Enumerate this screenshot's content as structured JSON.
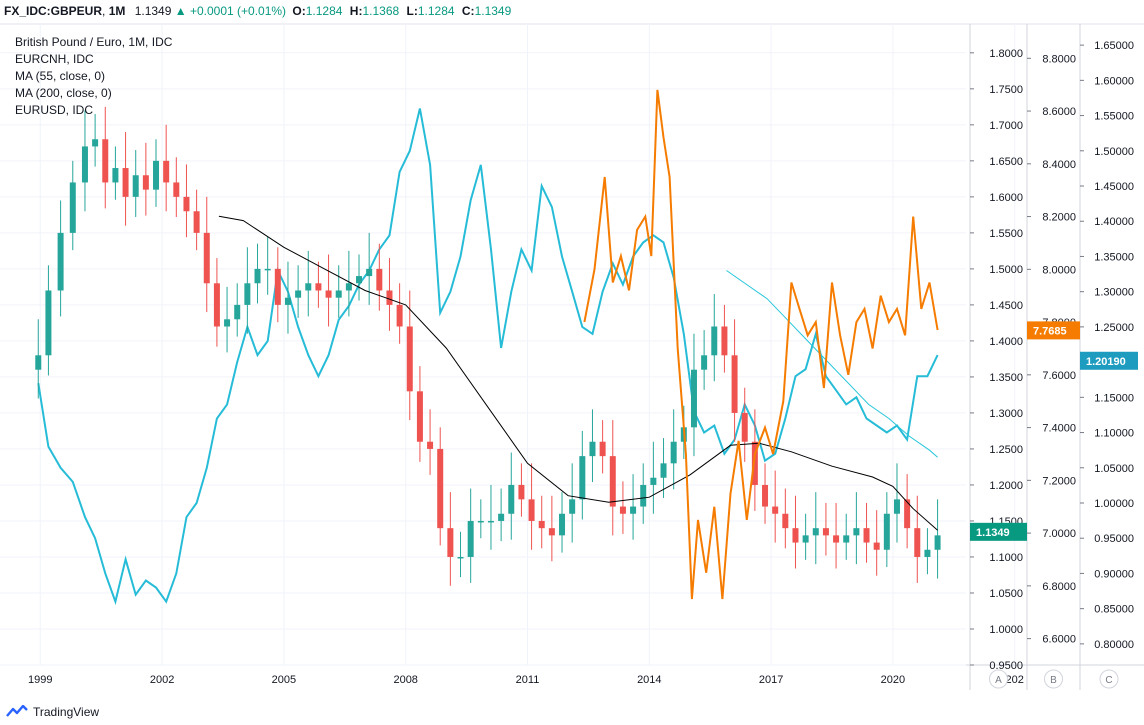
{
  "header": {
    "symbol": "FX_IDC:GBPEUR",
    "interval": "1M",
    "price": "1.1349",
    "change_icon": "triangle-up-icon",
    "change": "+0.0001 (+0.01%)",
    "open_label": "O:",
    "open": "1.1284",
    "high_label": "H:",
    "high": "1.1368",
    "low_label": "L:",
    "low": "1.1284",
    "close_label": "C:",
    "close": "1.1349"
  },
  "legend": [
    "British Pound / Euro, 1M, IDC",
    "EURCNH, IDC",
    "MA (55, close, 0)",
    "MA (200, close, 0)",
    "EURUSD, IDC"
  ],
  "colors": {
    "up": "#26a69a",
    "down": "#ef5350",
    "eurcnh": "#f57c00",
    "eurusd": "#26bcd7",
    "ma55": "#26c6da",
    "ma200": "#000000",
    "last_gbpeur": "#089981",
    "last_eurcnh": "#f57c00",
    "last_eurusd": "#1e9cc0"
  },
  "axis_buttons": [
    "A",
    "B",
    "C"
  ],
  "footer": {
    "brand": "TradingView",
    "logo_icon": "tradingview-logo-icon"
  },
  "chart_data": {
    "type": "line",
    "title": "British Pound / Euro, 1M, IDC",
    "x_ticks": [
      "1999",
      "2002",
      "2005",
      "2008",
      "2011",
      "2014",
      "2017",
      "2020",
      "202"
    ],
    "xlim": [
      1998.5,
      2021.8
    ],
    "axes": {
      "A": {
        "ylim": [
          0.95,
          1.84
        ],
        "ticks": [
          "1.8000",
          "1.7500",
          "1.7000",
          "1.6500",
          "1.6000",
          "1.5500",
          "1.5000",
          "1.4500",
          "1.4000",
          "1.3500",
          "1.3000",
          "1.2500",
          "1.2000",
          "1.1500",
          "1.1000",
          "1.0500",
          "1.0000",
          "0.9500"
        ],
        "last_label": "1.1349",
        "last_value": 1.1349
      },
      "B": {
        "ylim": [
          6.5,
          8.93
        ],
        "ticks": [
          "8.8000",
          "8.6000",
          "8.4000",
          "8.2000",
          "8.0000",
          "7.8000",
          "7.6000",
          "7.4000",
          "7.2000",
          "7.0000",
          "6.8000",
          "6.6000"
        ],
        "last_label": "7.7685",
        "last_value": 7.7685
      },
      "C": {
        "ylim": [
          0.77,
          1.68
        ],
        "ticks": [
          "1.65000",
          "1.60000",
          "1.55000",
          "1.50000",
          "1.45000",
          "1.40000",
          "1.35000",
          "1.30000",
          "1.25000",
          "1.20000",
          "1.15000",
          "1.10000",
          "1.05000",
          "1.00000",
          "0.95000",
          "0.90000",
          "0.85000",
          "0.80000"
        ],
        "last_label": "1.20190",
        "last_value": 1.2019
      }
    },
    "series": [
      {
        "name": "British Pound / Euro, 1M, IDC",
        "type": "candlestick",
        "axis": "A",
        "x": [
          1998.95,
          1999.2,
          1999.5,
          1999.8,
          2000.1,
          2000.35,
          2000.6,
          2000.85,
          2001.1,
          2001.35,
          2001.6,
          2001.85,
          2002.1,
          2002.35,
          2002.6,
          2002.85,
          2003.1,
          2003.35,
          2003.6,
          2003.85,
          2004.1,
          2004.35,
          2004.6,
          2004.85,
          2005.1,
          2005.35,
          2005.6,
          2005.85,
          2006.1,
          2006.35,
          2006.6,
          2006.85,
          2007.1,
          2007.35,
          2007.6,
          2007.85,
          2008.1,
          2008.35,
          2008.6,
          2008.85,
          2009.1,
          2009.35,
          2009.6,
          2009.85,
          2010.1,
          2010.35,
          2010.6,
          2010.85,
          2011.1,
          2011.35,
          2011.6,
          2011.85,
          2012.1,
          2012.35,
          2012.6,
          2012.85,
          2013.1,
          2013.35,
          2013.6,
          2013.85,
          2014.1,
          2014.35,
          2014.6,
          2014.85,
          2015.1,
          2015.35,
          2015.6,
          2015.85,
          2016.1,
          2016.35,
          2016.6,
          2016.85,
          2017.1,
          2017.35,
          2017.6,
          2017.85,
          2018.1,
          2018.35,
          2018.6,
          2018.85,
          2019.1,
          2019.35,
          2019.6,
          2019.85,
          2020.1,
          2020.35,
          2020.6,
          2020.85,
          2021.1
        ],
        "close": [
          1.38,
          1.47,
          1.55,
          1.62,
          1.67,
          1.68,
          1.62,
          1.64,
          1.6,
          1.63,
          1.61,
          1.65,
          1.62,
          1.6,
          1.58,
          1.55,
          1.48,
          1.42,
          1.43,
          1.45,
          1.48,
          1.5,
          1.5,
          1.45,
          1.46,
          1.47,
          1.48,
          1.47,
          1.46,
          1.47,
          1.48,
          1.49,
          1.5,
          1.47,
          1.45,
          1.42,
          1.33,
          1.26,
          1.25,
          1.14,
          1.1,
          1.1,
          1.15,
          1.15,
          1.15,
          1.16,
          1.2,
          1.18,
          1.15,
          1.14,
          1.13,
          1.16,
          1.18,
          1.24,
          1.26,
          1.24,
          1.17,
          1.16,
          1.17,
          1.2,
          1.21,
          1.23,
          1.26,
          1.28,
          1.36,
          1.38,
          1.42,
          1.38,
          1.3,
          1.26,
          1.2,
          1.17,
          1.16,
          1.14,
          1.12,
          1.13,
          1.14,
          1.13,
          1.12,
          1.13,
          1.14,
          1.12,
          1.11,
          1.16,
          1.18,
          1.14,
          1.1,
          1.11,
          1.13
        ]
      },
      {
        "name": "MA (55, close, 0)",
        "axis": "C",
        "x": [
          2015.9,
          2016.4,
          2016.9,
          2017.4,
          2017.9,
          2018.4,
          2018.9,
          2019.4,
          2019.9,
          2020.4,
          2020.9,
          2021.1
        ],
        "y": [
          1.33,
          1.31,
          1.29,
          1.26,
          1.23,
          1.2,
          1.17,
          1.14,
          1.12,
          1.095,
          1.075,
          1.065
        ]
      },
      {
        "name": "MA (200, close, 0)",
        "axis": "A",
        "x": [
          2003.4,
          2004.0,
          2005.0,
          2006.0,
          2007.0,
          2008.0,
          2009.0,
          2010.0,
          2011.0,
          2012.0,
          2013.0,
          2014.0,
          2015.0,
          2016.0,
          2016.7,
          2017.5,
          2018.5,
          2019.5,
          2020.0,
          2020.5,
          2021.1
        ],
        "y": [
          1.573,
          1.567,
          1.53,
          1.5,
          1.47,
          1.45,
          1.39,
          1.31,
          1.23,
          1.185,
          1.176,
          1.183,
          1.214,
          1.255,
          1.258,
          1.246,
          1.226,
          1.211,
          1.198,
          1.167,
          1.137
        ]
      },
      {
        "name": "EURCNH, IDC",
        "axis": "B",
        "x": [
          2012.4,
          2012.65,
          2012.9,
          2013.1,
          2013.3,
          2013.5,
          2013.7,
          2013.9,
          2014.05,
          2014.2,
          2014.35,
          2014.5,
          2014.7,
          2014.9,
          2015.05,
          2015.2,
          2015.4,
          2015.6,
          2015.8,
          2016.0,
          2016.2,
          2016.4,
          2016.6,
          2016.85,
          2017.05,
          2017.3,
          2017.5,
          2017.7,
          2017.9,
          2018.1,
          2018.3,
          2018.5,
          2018.7,
          2018.9,
          2019.1,
          2019.3,
          2019.5,
          2019.7,
          2019.9,
          2020.1,
          2020.3,
          2020.5,
          2020.7,
          2020.9,
          2021.1
        ],
        "y": [
          7.8,
          8.0,
          8.35,
          7.95,
          8.05,
          7.92,
          8.15,
          8.2,
          8.05,
          8.68,
          8.5,
          8.35,
          7.7,
          7.3,
          6.75,
          7.05,
          6.85,
          7.1,
          6.75,
          7.15,
          7.35,
          7.05,
          7.3,
          7.4,
          7.3,
          7.5,
          7.95,
          7.85,
          7.75,
          7.8,
          7.55,
          7.95,
          7.75,
          7.6,
          7.8,
          7.85,
          7.7,
          7.9,
          7.8,
          7.85,
          7.75,
          8.2,
          7.85,
          7.95,
          7.77
        ]
      },
      {
        "name": "EURUSD, IDC",
        "axis": "C",
        "x": [
          1998.95,
          1999.2,
          1999.5,
          1999.8,
          2000.1,
          2000.35,
          2000.6,
          2000.85,
          2001.1,
          2001.35,
          2001.6,
          2001.85,
          2002.1,
          2002.35,
          2002.6,
          2002.85,
          2003.1,
          2003.35,
          2003.6,
          2003.85,
          2004.1,
          2004.35,
          2004.6,
          2004.85,
          2005.1,
          2005.35,
          2005.6,
          2005.85,
          2006.1,
          2006.35,
          2006.6,
          2006.85,
          2007.1,
          2007.35,
          2007.6,
          2007.85,
          2008.1,
          2008.35,
          2008.6,
          2008.85,
          2009.1,
          2009.35,
          2009.6,
          2009.85,
          2010.1,
          2010.35,
          2010.6,
          2010.85,
          2011.1,
          2011.35,
          2011.6,
          2011.85,
          2012.1,
          2012.35,
          2012.6,
          2012.85,
          2013.1,
          2013.35,
          2013.6,
          2013.85,
          2014.1,
          2014.35,
          2014.6,
          2014.85,
          2015.1,
          2015.35,
          2015.6,
          2015.85,
          2016.1,
          2016.35,
          2016.6,
          2016.85,
          2017.1,
          2017.35,
          2017.6,
          2017.85,
          2018.1,
          2018.35,
          2018.6,
          2018.85,
          2019.1,
          2019.35,
          2019.6,
          2019.85,
          2020.1,
          2020.35,
          2020.6,
          2020.85,
          2021.1
        ],
        "y": [
          1.17,
          1.08,
          1.05,
          1.03,
          0.98,
          0.95,
          0.9,
          0.86,
          0.92,
          0.87,
          0.89,
          0.88,
          0.86,
          0.9,
          0.98,
          1.0,
          1.05,
          1.12,
          1.14,
          1.2,
          1.25,
          1.21,
          1.23,
          1.33,
          1.3,
          1.25,
          1.21,
          1.18,
          1.21,
          1.26,
          1.28,
          1.31,
          1.33,
          1.36,
          1.38,
          1.47,
          1.5,
          1.56,
          1.48,
          1.27,
          1.3,
          1.35,
          1.43,
          1.48,
          1.36,
          1.22,
          1.3,
          1.36,
          1.33,
          1.45,
          1.42,
          1.35,
          1.3,
          1.25,
          1.24,
          1.3,
          1.34,
          1.31,
          1.35,
          1.37,
          1.38,
          1.37,
          1.32,
          1.24,
          1.13,
          1.1,
          1.11,
          1.07,
          1.09,
          1.14,
          1.11,
          1.06,
          1.07,
          1.12,
          1.18,
          1.19,
          1.24,
          1.18,
          1.16,
          1.14,
          1.15,
          1.12,
          1.11,
          1.1,
          1.11,
          1.09,
          1.18,
          1.18,
          1.21
        ]
      }
    ]
  }
}
